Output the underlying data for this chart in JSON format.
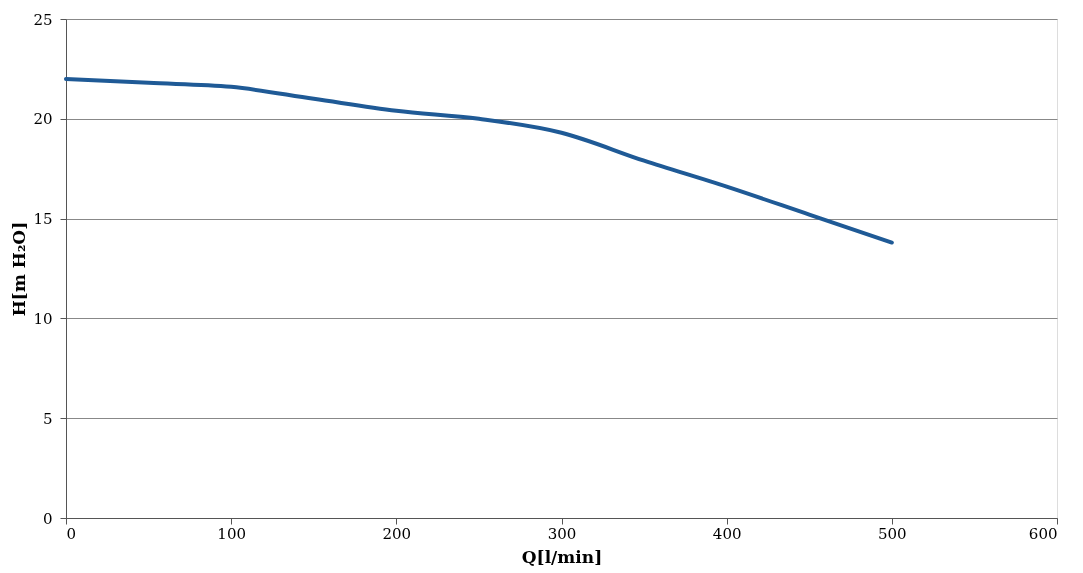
{
  "chart_data": {
    "type": "line",
    "xlabel": "Q[l/min]",
    "ylabel": "H[m H₂O]",
    "x": [
      0,
      50,
      100,
      150,
      200,
      250,
      300,
      350,
      400,
      450,
      500
    ],
    "series": [
      {
        "color": "#1f5a96",
        "values": [
          22.0,
          21.8,
          21.6,
          21.0,
          20.4,
          20.0,
          19.3,
          17.9,
          16.6,
          15.2,
          13.8
        ]
      }
    ],
    "xlim": [
      0,
      600
    ],
    "xticks": [
      0,
      100,
      200,
      300,
      400,
      500,
      600
    ],
    "ylim": [
      0,
      25
    ],
    "yticks": [
      0,
      5,
      10,
      15,
      20,
      25
    ],
    "grid": "y",
    "marker": "none",
    "line_style": "solid"
  }
}
